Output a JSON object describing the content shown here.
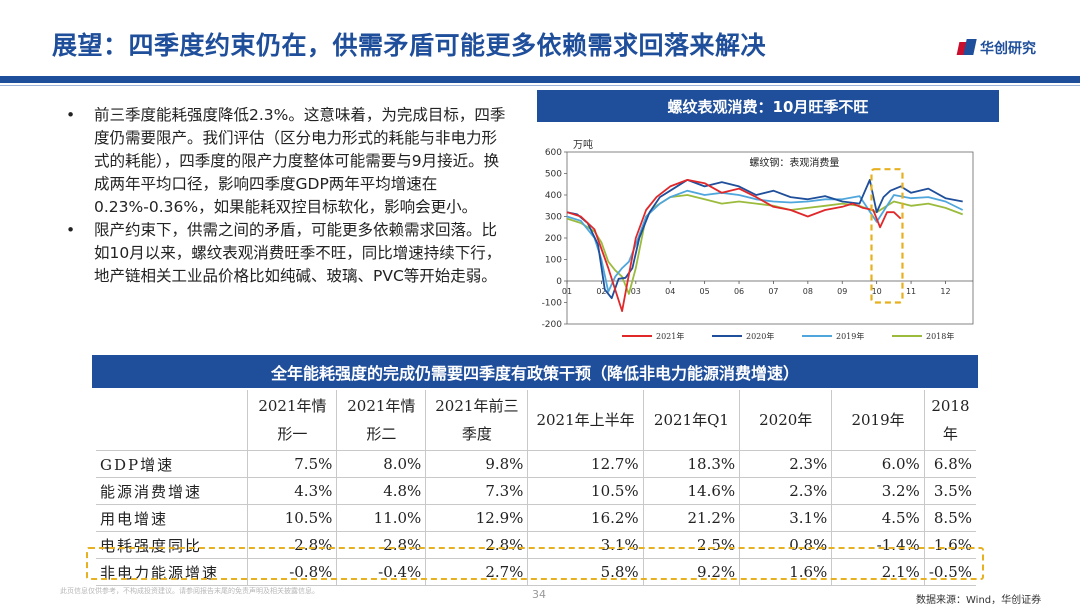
{
  "header": {
    "title": "展望：四季度约束仍在，供需矛盾可能更多依赖需求回落来解决",
    "logo_text": "华创研究"
  },
  "bullets": [
    "前三季度能耗强度降低2.3%。这意味着，为完成目标，四季度仍需要限产。我们评估（区分电力形式的耗能与非电力形式的耗能），四季度的限产力度整体可能需要与9月接近。换成两年平均口径，影响四季度GDP两年平均增速在0.23%-0.36%，如果能耗双控目标软化，影响会更小。",
    "限产约束下，供需之间的矛盾，可能更多依赖需求回落。比如10月以来，螺纹表观消费旺季不旺，同比增速持续下行，地产链相关工业品价格比如纯碱、玻璃、PVC等开始走弱。"
  ],
  "bullet_marker": "•",
  "chart_banner": "螺纹表观消费：10月旺季不旺",
  "chart_data": {
    "type": "line",
    "title": "螺纹钢：表观消费量",
    "ylabel": "万吨",
    "ylim": [
      -200,
      600
    ],
    "yticks": [
      -200,
      -100,
      0,
      100,
      200,
      300,
      400,
      500,
      600
    ],
    "xlim": [
      1,
      12.8
    ],
    "xticks": [
      "01",
      "02",
      "03",
      "04",
      "05",
      "06",
      "07",
      "08",
      "09",
      "10",
      "11",
      "12"
    ],
    "highlight_x": [
      9.85,
      10.75
    ],
    "series": [
      {
        "name": "2021年",
        "color": "#e0282b",
        "x": [
          1,
          1.4,
          1.8,
          2.0,
          2.2,
          2.4,
          2.6,
          2.8,
          3.0,
          3.3,
          3.6,
          4.0,
          4.5,
          5.0,
          5.5,
          6.0,
          6.5,
          7.0,
          7.5,
          8.0,
          8.5,
          9.0,
          9.3,
          9.6,
          9.9,
          10.1,
          10.3,
          10.5,
          10.7
        ],
        "y": [
          320,
          300,
          240,
          150,
          60,
          -40,
          -140,
          30,
          200,
          330,
          390,
          440,
          470,
          455,
          410,
          430,
          390,
          345,
          330,
          300,
          330,
          345,
          360,
          340,
          330,
          250,
          320,
          320,
          290
        ]
      },
      {
        "name": "2020年",
        "color": "#1f4e9a",
        "x": [
          1,
          1.3,
          1.6,
          1.9,
          2.1,
          2.3,
          2.5,
          2.7,
          2.9,
          3.1,
          3.4,
          3.7,
          4.0,
          4.5,
          5.0,
          5.5,
          6.0,
          6.5,
          7.0,
          7.5,
          8.0,
          8.5,
          9.0,
          9.5,
          9.8,
          10.0,
          10.2,
          10.4,
          10.7,
          11.0,
          11.5,
          12.0,
          12.5
        ],
        "y": [
          320,
          310,
          270,
          170,
          -40,
          -80,
          10,
          15,
          60,
          200,
          320,
          390,
          420,
          470,
          440,
          460,
          440,
          400,
          420,
          390,
          380,
          395,
          370,
          360,
          470,
          320,
          390,
          420,
          440,
          410,
          430,
          385,
          370
        ]
      },
      {
        "name": "2019年",
        "color": "#4fa6dc",
        "x": [
          1,
          1.4,
          1.8,
          2.0,
          2.2,
          2.4,
          2.6,
          2.8,
          3.0,
          3.3,
          3.7,
          4.0,
          4.5,
          5.0,
          5.5,
          6.0,
          6.5,
          7.0,
          7.5,
          8.0,
          8.5,
          9.0,
          9.5,
          10.0,
          10.5,
          11.0,
          11.5,
          12.0,
          12.5
        ],
        "y": [
          300,
          280,
          200,
          100,
          -50,
          20,
          60,
          90,
          170,
          300,
          360,
          390,
          420,
          400,
          410,
          400,
          380,
          370,
          365,
          370,
          380,
          380,
          395,
          275,
          400,
          385,
          390,
          370,
          330
        ]
      },
      {
        "name": "2018年",
        "color": "#9bbb3d",
        "x": [
          1,
          1.4,
          1.8,
          2.0,
          2.2,
          2.4,
          2.6,
          2.8,
          3.0,
          3.3,
          3.6,
          4.0,
          4.5,
          5.0,
          5.5,
          6.0,
          6.5,
          7.0,
          7.5,
          8.0,
          8.5,
          9.0,
          9.5,
          10.0,
          10.5,
          11.0,
          11.5,
          12.0,
          12.5
        ],
        "y": [
          290,
          270,
          230,
          180,
          90,
          50,
          20,
          -60,
          60,
          300,
          350,
          390,
          400,
          380,
          360,
          370,
          360,
          350,
          330,
          340,
          350,
          360,
          350,
          320,
          370,
          350,
          360,
          340,
          310
        ]
      }
    ]
  },
  "table_banner": "全年能耗强度的完成仍需要四季度有政策干预（降低非电力能源消费增速）",
  "table": {
    "headers": [
      {
        "l1": "",
        "l2": ""
      },
      {
        "l1": "2021年情",
        "l2": "形一"
      },
      {
        "l1": "2021年情",
        "l2": "形二"
      },
      {
        "l1": "2021年前三",
        "l2": "季度"
      },
      {
        "l1": "2021年上半年",
        "l2": ""
      },
      {
        "l1": "2021年Q1",
        "l2": ""
      },
      {
        "l1": "2020年",
        "l2": ""
      },
      {
        "l1": "2019年",
        "l2": ""
      },
      {
        "l1": "2018年",
        "l2": ""
      }
    ],
    "rows": [
      [
        "GDP增速",
        "7.5%",
        "8.0%",
        "9.8%",
        "12.7%",
        "18.3%",
        "2.3%",
        "6.0%",
        "6.8%"
      ],
      [
        "能源消费增速",
        "4.3%",
        "4.8%",
        "7.3%",
        "10.5%",
        "14.6%",
        "2.3%",
        "3.2%",
        "3.5%"
      ],
      [
        "用电增速",
        "10.5%",
        "11.0%",
        "12.9%",
        "16.2%",
        "21.2%",
        "3.1%",
        "4.5%",
        "8.5%"
      ],
      [
        "电耗强度同比",
        "2.8%",
        "2.8%",
        "2.8%",
        "3.1%",
        "2.5%",
        "0.8%",
        "-1.4%",
        "1.6%"
      ],
      [
        "非电力能源增速",
        "-0.8%",
        "-0.4%",
        "2.7%",
        "5.8%",
        "9.2%",
        "1.6%",
        "2.1%",
        "-0.5%"
      ]
    ]
  },
  "footer": {
    "note": "此页信息仅供参考，不构成投资建议。请参阅报告末尾的免责声明及相关披露信息。",
    "page": "34",
    "source": "数据来源：Wind，华创证券"
  },
  "colors": {
    "brand_blue": "#1f4e9a",
    "highlight": "#e6b020"
  }
}
